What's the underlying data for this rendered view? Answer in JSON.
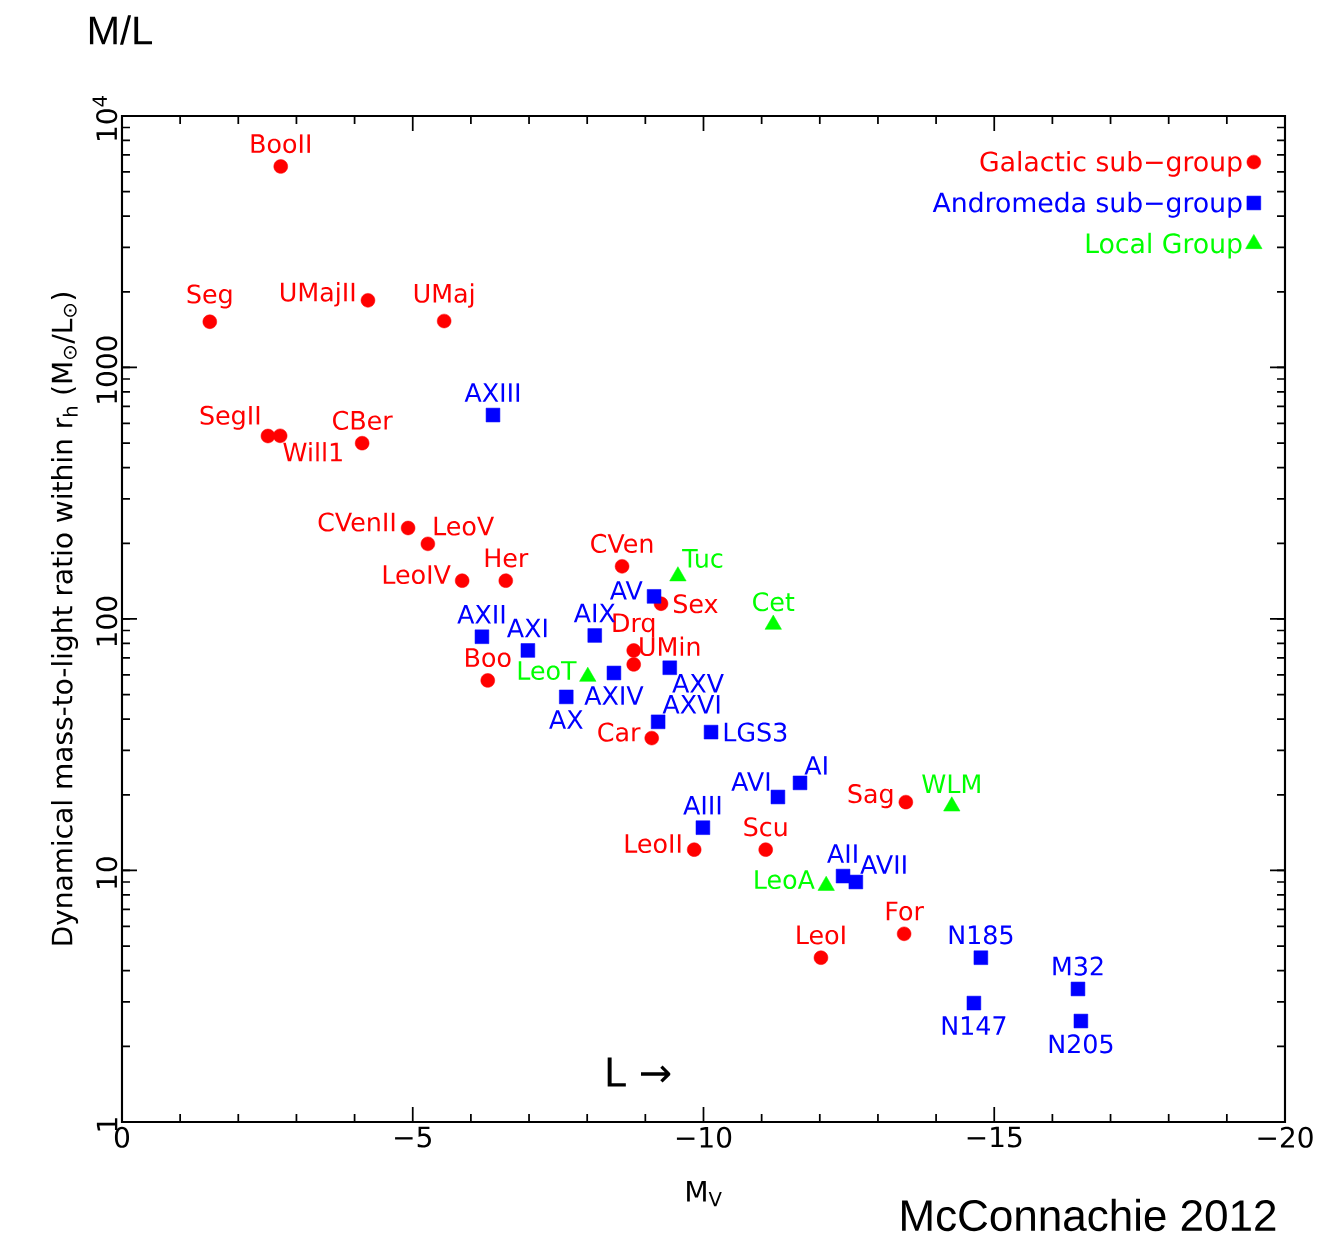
{
  "chart_data": {
    "type": "scatter",
    "title": "M/L",
    "xlabel": "M$_{V}$",
    "ylabel": "Dynamical mass-to-light ratio within r$_{h}$ (M$_{⊙}$/L$_{⊙}$)",
    "log": "y",
    "grid": false,
    "legend": "top right",
    "xlim": [
      0,
      -20
    ],
    "xticks": [
      0,
      {
        "value": -5,
        "label": "−5"
      },
      {
        "value": -10,
        "label": "−10"
      },
      {
        "value": -15,
        "label": "−15"
      },
      {
        "value": -20,
        "label": "−20"
      }
    ],
    "ylim": [
      1,
      10000
    ],
    "yticks": [
      1,
      10,
      100,
      1000,
      {
        "value": 10000,
        "label": "10$^{4}$"
      }
    ],
    "series": [
      {
        "name": "Galactic sub−group",
        "color": "#ff0000",
        "marker": "circle",
        "x": [
          -2.73,
          -1.51,
          -4.23,
          -5.54,
          -2.51,
          -2.72,
          -4.13,
          -4.92,
          -5.26,
          -5.85,
          -6.6,
          -8.6,
          -9.27,
          -8.8,
          -8.8,
          -6.29,
          -9.11,
          -9.84,
          -11.07,
          -13.48,
          -13.45,
          -12.02
        ],
        "values": [
          6300,
          1520,
          1850,
          1530,
          534,
          535,
          500,
          230,
          199,
          142,
          142,
          162,
          115,
          75,
          66,
          57,
          33.6,
          12.1,
          12.1,
          18.7,
          5.6,
          4.5
        ]
      },
      {
        "name": "Andromeda sub−group",
        "color": "#0000ff",
        "marker": "square",
        "x": [
          -6.38,
          -9.15,
          -6.19,
          -6.98,
          -8.13,
          -8.46,
          -9.42,
          -7.64,
          -9.22,
          -10.13,
          -11.28,
          -11.66,
          -9.99,
          -12.4,
          -12.62,
          -14.77,
          -14.65,
          -16.44,
          -16.49
        ],
        "values": [
          647,
          123,
          85,
          75,
          86,
          61,
          64,
          49,
          39,
          35.5,
          19.6,
          22.3,
          14.8,
          9.5,
          9.0,
          4.5,
          2.97,
          3.38,
          2.52
        ]
      },
      {
        "name": "Local Group",
        "color": "#00ff00",
        "marker": "triangle",
        "x": [
          -9.56,
          -11.2,
          -8.01,
          -14.27,
          -12.11
        ],
        "values": [
          148,
          95,
          59,
          18,
          8.7
        ]
      }
    ],
    "annotations": [
      {
        "text": "BooII",
        "x": -2.73,
        "y": 6300
      },
      {
        "text": "Seg",
        "x": -1.51,
        "y": 1520
      },
      {
        "text": "UMajII",
        "x": -4.23,
        "y": 1850
      },
      {
        "text": "UMaj",
        "x": -5.54,
        "y": 1530
      },
      {
        "text": "SegII",
        "x": -2.51,
        "y": 534
      },
      {
        "text": "Will1",
        "x": -2.72,
        "y": 535
      },
      {
        "text": "CBer",
        "x": -4.13,
        "y": 500
      },
      {
        "text": "CVenII",
        "x": -4.92,
        "y": 230
      },
      {
        "text": "LeoV",
        "x": -5.26,
        "y": 199
      },
      {
        "text": "LeoIV",
        "x": -5.85,
        "y": 142
      },
      {
        "text": "Her",
        "x": -6.6,
        "y": 142
      },
      {
        "text": "CVen",
        "x": -8.6,
        "y": 162
      },
      {
        "text": "Sex",
        "x": -9.27,
        "y": 115
      },
      {
        "text": "Drq",
        "x": -8.8,
        "y": 75
      },
      {
        "text": "UMin",
        "x": -8.8,
        "y": 66
      },
      {
        "text": "Boo",
        "x": -6.29,
        "y": 57
      },
      {
        "text": "Car",
        "x": -9.11,
        "y": 33.6
      },
      {
        "text": "LeoII",
        "x": -9.84,
        "y": 12.1
      },
      {
        "text": "Scu",
        "x": -11.07,
        "y": 12.1
      },
      {
        "text": "Sag",
        "x": -13.48,
        "y": 18.7
      },
      {
        "text": "For",
        "x": -13.45,
        "y": 5.6
      },
      {
        "text": "LeoI",
        "x": -12.02,
        "y": 4.5
      },
      {
        "text": "AXIII",
        "x": -6.38,
        "y": 647
      },
      {
        "text": "AV",
        "x": -9.15,
        "y": 123
      },
      {
        "text": "AXII",
        "x": -6.19,
        "y": 85
      },
      {
        "text": "AXI",
        "x": -6.98,
        "y": 75
      },
      {
        "text": "AIX",
        "x": -8.13,
        "y": 86
      },
      {
        "text": "AXIV",
        "x": -8.46,
        "y": 61
      },
      {
        "text": "AXV",
        "x": -9.42,
        "y": 64
      },
      {
        "text": "AX",
        "x": -7.64,
        "y": 49
      },
      {
        "text": "AXVI",
        "x": -9.22,
        "y": 39
      },
      {
        "text": "LGS3",
        "x": -10.13,
        "y": 35.5
      },
      {
        "text": "AVI",
        "x": -11.28,
        "y": 19.6
      },
      {
        "text": "AI",
        "x": -11.66,
        "y": 22.3
      },
      {
        "text": "AIII",
        "x": -9.99,
        "y": 14.8
      },
      {
        "text": "AII",
        "x": -12.4,
        "y": 9.5
      },
      {
        "text": "AVII",
        "x": -12.62,
        "y": 9.0
      },
      {
        "text": "N185",
        "x": -14.77,
        "y": 4.5
      },
      {
        "text": "N147",
        "x": -14.65,
        "y": 2.97
      },
      {
        "text": "M32",
        "x": -16.44,
        "y": 3.38
      },
      {
        "text": "N205",
        "x": -16.49,
        "y": 2.52
      },
      {
        "text": "Tuc",
        "x": -9.56,
        "y": 148
      },
      {
        "text": "Cet",
        "x": -11.2,
        "y": 95
      },
      {
        "text": "LeoT",
        "x": -8.01,
        "y": 59
      },
      {
        "text": "WLM",
        "x": -14.27,
        "y": 18
      },
      {
        "text": "LeoA",
        "x": -12.11,
        "y": 8.7
      },
      "L →",
      "McConnachie 2012"
    ]
  }
}
